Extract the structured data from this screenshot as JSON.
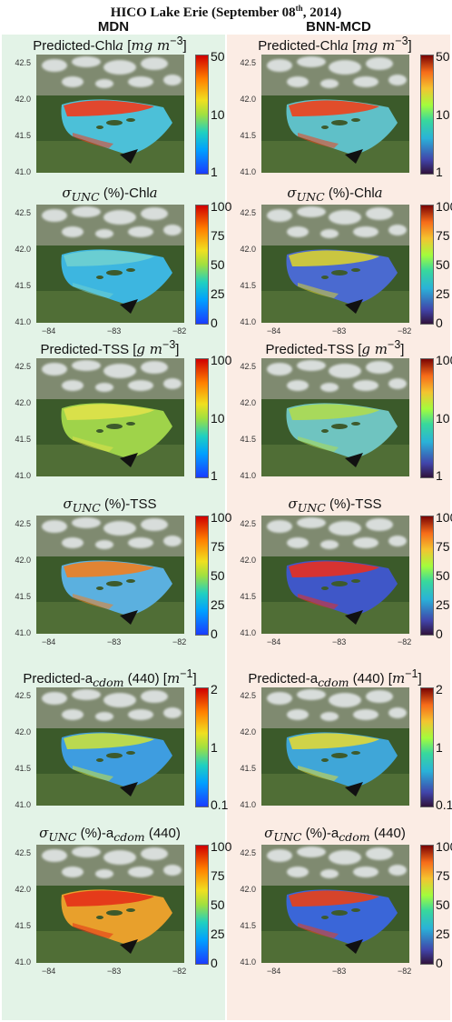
{
  "figure_title": "HICO Lake Erie (September 08",
  "figure_title_sup": "th",
  "figure_title_end": ", 2014)",
  "columns": [
    "MDN",
    "BNN-MCD"
  ],
  "colors": {
    "mdn_bg": "#e3f3e7",
    "bnn_bg": "#fbece4"
  },
  "y_ticks": [
    "42.5",
    "42.0",
    "41.5",
    "41.0"
  ],
  "x_ticks": [
    "−84",
    "−83",
    "−82"
  ],
  "rows": [
    {
      "title": "Predicted-Chl<i>a</i> [<i>mg m</i><sup>−3</sup>]",
      "cbar_labels": [
        "50",
        "10",
        "1"
      ],
      "show_x": false
    },
    {
      "title": "<i>σ<sub>UNC</sub></i> (%)-Chl<i>a</i>",
      "cbar_labels": [
        "100",
        "75",
        "50",
        "25",
        "0"
      ],
      "show_x": true
    },
    {
      "title": "Predicted-TSS [<i>g m</i><sup>−3</sup>]",
      "cbar_labels": [
        "100",
        "10",
        "1"
      ],
      "show_x": false
    },
    {
      "title": "<i>σ<sub>UNC</sub></i> (%)-TSS",
      "cbar_labels": [
        "100",
        "75",
        "50",
        "25",
        "0"
      ],
      "show_x": true
    },
    {
      "title": "Predicted-a<sub><i>cdom</i></sub> (440) [<i>m</i><sup>−1</sup>]",
      "cbar_labels": [
        "2",
        "1",
        "0.1"
      ],
      "show_x": false
    },
    {
      "title": "<i>σ<sub>UNC</sub></i> (%)-a<sub><i>cdom</i></sub> (440)",
      "cbar_labels": [
        "100",
        "75",
        "50",
        "25",
        "0"
      ],
      "show_x": true
    }
  ],
  "lake_color": {
    "mdn": [
      "#4cc0d8",
      "#3db6e0",
      "#9fd34a",
      "#5bb0df",
      "#3e9de0",
      "#e8a02c"
    ],
    "bnn": [
      "#5fc0c8",
      "#4a6ad0",
      "#6fc4c0",
      "#3f57c8",
      "#3fa6d8",
      "#3a66d8"
    ]
  },
  "lake_hot": {
    "mdn": [
      "#f23a1c",
      "#6fd0d0",
      "#dfe24a",
      "#f08020",
      "#c8e040",
      "#e43018"
    ],
    "bnn": [
      "#f0401a",
      "#d8d030",
      "#aedc50",
      "#e83020",
      "#e0d838",
      "#e84018"
    ]
  }
}
